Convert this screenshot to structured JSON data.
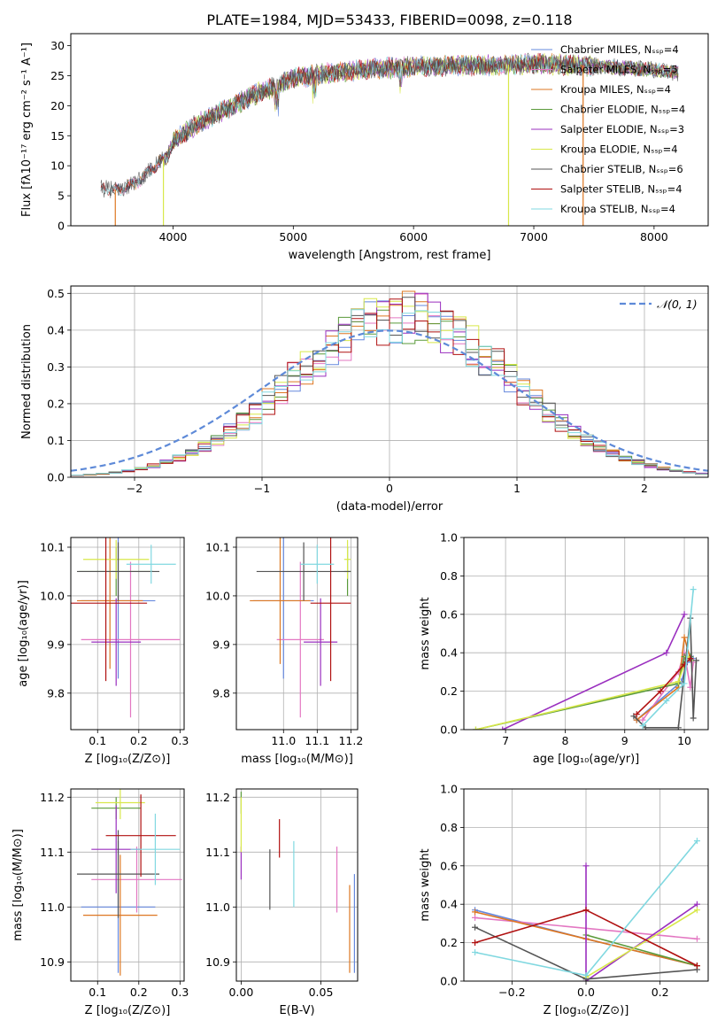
{
  "title": "PLATE=1984, MJD=53433, FIBERID=0098, z=0.118",
  "colors": {
    "Chabrier MILES": "#6688dd",
    "Salpeter MILES": "#e377c2",
    "Kroupa MILES": "#dd7722",
    "Chabrier ELODIE": "#5a9a3a",
    "Salpeter ELODIE": "#9a2fbf",
    "Kroupa ELODIE": "#d8e84a",
    "Chabrier STELIB": "#555555",
    "Salpeter STELIB": "#b01010",
    "Kroupa STELIB": "#80d8e0"
  },
  "chart_data": [
    {
      "type": "line",
      "name": "spectrum",
      "xlabel": "wavelength [Angstrom, rest frame]",
      "ylabel": "Flux [fλ10⁻¹⁷ erg cm⁻² s⁻¹ A⁻¹]",
      "xlim": [
        3150,
        8450
      ],
      "ylim": [
        0,
        32
      ],
      "xticks": [
        4000,
        5000,
        6000,
        7000,
        8000
      ],
      "yticks": [
        0,
        5,
        10,
        15,
        20,
        25,
        30
      ],
      "grid": false,
      "legend_position": "top-right",
      "legend": [
        "Chabrier MILES, Nₛₛₚ=4",
        "Salpeter MILES, Nₛₛₚ=5",
        "Kroupa MILES, Nₛₛₚ=4",
        "Chabrier ELODIE, Nₛₛₚ=4",
        "Salpeter ELODIE, Nₛₛₚ=3",
        "Kroupa ELODIE, Nₛₛₚ=4",
        "Chabrier STELIB, Nₛₛₚ=6",
        "Salpeter STELIB, Nₛₛₚ=4",
        "Kroupa STELIB, Nₛₛₚ=4"
      ],
      "continuum": {
        "x": [
          3400,
          3550,
          3700,
          3850,
          3950,
          4000,
          4200,
          4400,
          4700,
          5000,
          5300,
          5600,
          6000,
          6300,
          6700,
          7000,
          7300,
          7600,
          8000,
          8200
        ],
        "y": [
          6.2,
          6.0,
          7.2,
          10.0,
          11.5,
          14.0,
          17.0,
          19.0,
          22.0,
          24.5,
          25.5,
          26.0,
          26.5,
          26.7,
          26.8,
          27.0,
          26.8,
          26.5,
          26.0,
          25.5
        ]
      },
      "dropouts": [
        {
          "series": "Kroupa MILES",
          "x": 3520
        },
        {
          "series": "Kroupa ELODIE",
          "x": 3920
        },
        {
          "series": "Kroupa ELODIE",
          "x": 6790
        },
        {
          "series": "Kroupa MILES",
          "x": 7410
        }
      ]
    },
    {
      "type": "line",
      "name": "residual-histogram",
      "xlabel": "(data-model)/error",
      "ylabel": "Normed distribution",
      "xlim": [
        -2.5,
        2.5
      ],
      "ylim": [
        0,
        0.52
      ],
      "xticks": [
        -2,
        -1,
        0,
        1,
        2
      ],
      "yticks": [
        0.0,
        0.1,
        0.2,
        0.3,
        0.4,
        0.5
      ],
      "grid": true,
      "legend_position": "top-right",
      "legend": [
        "𝒩(0, 1)"
      ],
      "gaussian": {
        "mean": 0,
        "sigma": 1
      }
    },
    {
      "type": "scatter",
      "name": "age-vs-Z",
      "xlabel": "Z [log₁₀(Z/Z⊙)]",
      "ylabel": "age  [log₁₀(age/yr)]",
      "xlim": [
        0.035,
        0.31
      ],
      "ylim": [
        9.725,
        10.12
      ],
      "xticks": [
        0.1,
        0.2,
        0.3
      ],
      "yticks": [
        9.8,
        9.9,
        10.0,
        10.1
      ],
      "grid": true,
      "points": [
        {
          "series": "Chabrier MILES",
          "x": 0.15,
          "xerr": 0.09,
          "y": 9.99,
          "yerr": 0.16
        },
        {
          "series": "Salpeter MILES",
          "x": 0.18,
          "xerr": 0.12,
          "y": 9.91,
          "yerr": 0.16
        },
        {
          "series": "Kroupa MILES",
          "x": 0.13,
          "xerr": 0.08,
          "y": 9.99,
          "yerr": 0.14
        },
        {
          "series": "Chabrier ELODIE",
          "x": 0.145,
          "xerr": 0.09,
          "y": 10.05,
          "yerr": 0.05
        },
        {
          "series": "Salpeter ELODIE",
          "x": 0.145,
          "xerr": 0.06,
          "y": 9.905,
          "yerr": 0.09
        },
        {
          "series": "Kroupa ELODIE",
          "x": 0.145,
          "xerr": 0.08,
          "y": 10.075,
          "yerr": 0.04
        },
        {
          "series": "Chabrier STELIB",
          "x": 0.15,
          "xerr": 0.1,
          "y": 10.05,
          "yerr": 0.06
        },
        {
          "series": "Salpeter STELIB",
          "x": 0.12,
          "xerr": 0.1,
          "y": 9.985,
          "yerr": 0.16
        },
        {
          "series": "Kroupa STELIB",
          "x": 0.23,
          "xerr": 0.06,
          "y": 10.065,
          "yerr": 0.04
        }
      ]
    },
    {
      "type": "scatter",
      "name": "age-vs-mass",
      "xlabel": "mass [log₁₀(M/M⊙)]",
      "ylabel": "",
      "xlim": [
        10.86,
        11.22
      ],
      "ylim": [
        9.725,
        10.12
      ],
      "xticks": [
        11.0,
        11.1,
        11.2
      ],
      "yticks": [
        9.8,
        9.9,
        10.0,
        10.1
      ],
      "grid": true,
      "points": [
        {
          "series": "Chabrier MILES",
          "x": 11.0,
          "xerr": 0.09,
          "y": 9.99,
          "yerr": 0.16
        },
        {
          "series": "Salpeter MILES",
          "x": 11.05,
          "xerr": 0.07,
          "y": 9.91,
          "yerr": 0.16
        },
        {
          "series": "Kroupa MILES",
          "x": 10.99,
          "xerr": 0.09,
          "y": 9.99,
          "yerr": 0.13
        },
        {
          "series": "Chabrier ELODIE",
          "x": 11.19,
          "xerr": 0.01,
          "y": 10.05,
          "yerr": 0.05
        },
        {
          "series": "Salpeter ELODIE",
          "x": 11.11,
          "xerr": 0.05,
          "y": 9.905,
          "yerr": 0.09
        },
        {
          "series": "Kroupa ELODIE",
          "x": 11.19,
          "xerr": 0.01,
          "y": 10.075,
          "yerr": 0.04
        },
        {
          "series": "Chabrier STELIB",
          "x": 11.06,
          "xerr": 0.14,
          "y": 10.05,
          "yerr": 0.06
        },
        {
          "series": "Salpeter STELIB",
          "x": 11.14,
          "xerr": 0.06,
          "y": 9.985,
          "yerr": 0.16
        },
        {
          "series": "Kroupa STELIB",
          "x": 11.1,
          "xerr": 0.05,
          "y": 10.065,
          "yerr": 0.04
        }
      ]
    },
    {
      "type": "line",
      "name": "mass-weight-vs-age",
      "xlabel": "age  [log₁₀(age/yr)]",
      "ylabel": "mass weight",
      "xlim": [
        6.3,
        10.4
      ],
      "ylim": [
        0,
        1.0
      ],
      "xticks": [
        7,
        8,
        9,
        10
      ],
      "yticks": [
        0.0,
        0.2,
        0.4,
        0.6,
        0.8,
        1.0
      ],
      "grid": true,
      "series": [
        {
          "key": "Chabrier MILES",
          "x": [
            9.2,
            9.95,
            10.05,
            10.15
          ],
          "y": [
            0.05,
            0.25,
            0.35,
            0.37
          ]
        },
        {
          "key": "Salpeter MILES",
          "x": [
            9.3,
            9.9,
            10.0,
            10.1,
            10.15
          ],
          "y": [
            0.05,
            0.3,
            0.4,
            0.22,
            0.35
          ]
        },
        {
          "key": "Kroupa MILES",
          "x": [
            9.2,
            9.9,
            10.0,
            10.1
          ],
          "y": [
            0.05,
            0.22,
            0.48,
            0.37
          ]
        },
        {
          "key": "Chabrier ELODIE",
          "x": [
            6.5,
            9.9,
            10.0,
            10.1
          ],
          "y": [
            0.0,
            0.24,
            0.38,
            0.38
          ]
        },
        {
          "key": "Salpeter ELODIE",
          "x": [
            6.95,
            9.7,
            10.0
          ],
          "y": [
            0.0,
            0.4,
            0.6
          ]
        },
        {
          "key": "Kroupa ELODIE",
          "x": [
            6.5,
            9.9,
            10.05,
            10.12
          ],
          "y": [
            0.0,
            0.25,
            0.38,
            0.36
          ]
        },
        {
          "key": "Chabrier STELIB",
          "x": [
            9.15,
            9.35,
            9.9,
            10.1,
            10.15,
            10.2
          ],
          "y": [
            0.07,
            0.01,
            0.01,
            0.58,
            0.06,
            0.36
          ]
        },
        {
          "key": "Salpeter STELIB",
          "x": [
            9.2,
            9.6,
            10.0,
            10.1
          ],
          "y": [
            0.08,
            0.2,
            0.34,
            0.37
          ]
        },
        {
          "key": "Kroupa STELIB",
          "x": [
            9.3,
            9.7,
            10.0,
            10.15
          ],
          "y": [
            0.02,
            0.15,
            0.24,
            0.73
          ]
        }
      ]
    },
    {
      "type": "scatter",
      "name": "mass-vs-Z",
      "xlabel": "Z [log₁₀(Z/Z⊙)]",
      "ylabel": "mass [log₁₀(M/M⊙)]",
      "xlim": [
        0.035,
        0.31
      ],
      "ylim": [
        10.865,
        11.215
      ],
      "xticks": [
        0.1,
        0.2,
        0.3
      ],
      "yticks": [
        10.9,
        11.0,
        11.1,
        11.2
      ],
      "grid": true,
      "points": [
        {
          "series": "Chabrier MILES",
          "x": 0.15,
          "xerr": 0.09,
          "y": 11.0,
          "yerr": 0.12
        },
        {
          "series": "Salpeter MILES",
          "x": 0.195,
          "xerr": 0.11,
          "y": 11.05,
          "yerr": 0.06
        },
        {
          "series": "Kroupa MILES",
          "x": 0.155,
          "xerr": 0.09,
          "y": 10.985,
          "yerr": 0.11
        },
        {
          "series": "Chabrier ELODIE",
          "x": 0.145,
          "xerr": 0.06,
          "y": 11.18,
          "yerr": 0.02
        },
        {
          "series": "Salpeter ELODIE",
          "x": 0.145,
          "xerr": 0.06,
          "y": 11.105,
          "yerr": 0.08
        },
        {
          "series": "Kroupa ELODIE",
          "x": 0.155,
          "xerr": 0.06,
          "y": 11.19,
          "yerr": 0.03
        },
        {
          "series": "Chabrier STELIB",
          "x": 0.15,
          "xerr": 0.1,
          "y": 11.06,
          "yerr": 0.08
        },
        {
          "series": "Salpeter STELIB",
          "x": 0.205,
          "xerr": 0.085,
          "y": 11.13,
          "yerr": 0.075
        },
        {
          "series": "Kroupa STELIB",
          "x": 0.24,
          "xerr": 0.06,
          "y": 11.105,
          "yerr": 0.065
        }
      ]
    },
    {
      "type": "scatter",
      "name": "mass-vs-EBV",
      "xlabel": "E(B-V)",
      "ylabel": "",
      "xlim": [
        -0.003,
        0.073
      ],
      "ylim": [
        10.865,
        11.215
      ],
      "xticks": [
        0.0,
        0.05
      ],
      "yticks": [
        10.9,
        11.0,
        11.1,
        11.2
      ],
      "grid": true,
      "points": [
        {
          "series": "Chabrier MILES",
          "x": 0.071,
          "xerr": 0,
          "y": 10.97,
          "yerr": 0.09
        },
        {
          "series": "Salpeter MILES",
          "x": 0.06,
          "xerr": 0,
          "y": 11.05,
          "yerr": 0.06
        },
        {
          "series": "Kroupa MILES",
          "x": 0.068,
          "xerr": 0,
          "y": 10.96,
          "yerr": 0.08
        },
        {
          "series": "Chabrier ELODIE",
          "x": 0.0,
          "xerr": 0,
          "y": 11.19,
          "yerr": 0.02
        },
        {
          "series": "Salpeter ELODIE",
          "x": 0.0,
          "xerr": 0,
          "y": 11.08,
          "yerr": 0.03
        },
        {
          "series": "Kroupa ELODIE",
          "x": 0.0,
          "xerr": 0,
          "y": 11.15,
          "yerr": 0.05
        },
        {
          "series": "Chabrier STELIB",
          "x": 0.018,
          "xerr": 0,
          "y": 11.05,
          "yerr": 0.055
        },
        {
          "series": "Salpeter STELIB",
          "x": 0.024,
          "xerr": 0,
          "y": 11.125,
          "yerr": 0.035
        },
        {
          "series": "Kroupa STELIB",
          "x": 0.033,
          "xerr": 0,
          "y": 11.06,
          "yerr": 0.06
        }
      ]
    },
    {
      "type": "line",
      "name": "mass-weight-vs-Z",
      "xlabel": "Z [log₁₀(Z/Z⊙)]",
      "ylabel": "mass weight",
      "xlim": [
        -0.33,
        0.33
      ],
      "ylim": [
        0,
        1.0
      ],
      "xticks": [
        -0.2,
        0.0,
        0.2
      ],
      "yticks": [
        0.0,
        0.2,
        0.4,
        0.6,
        0.8,
        1.0
      ],
      "grid": true,
      "series": [
        {
          "key": "Chabrier MILES",
          "x": [
            -0.3,
            0.0,
            0.3
          ],
          "y": [
            0.37,
            0.22,
            0.08
          ]
        },
        {
          "key": "Salpeter MILES",
          "x": [
            -0.3,
            0.3
          ],
          "y": [
            0.33,
            0.22
          ]
        },
        {
          "key": "Kroupa MILES",
          "x": [
            -0.3,
            0.0,
            0.3
          ],
          "y": [
            0.36,
            0.22,
            0.08
          ]
        },
        {
          "key": "Chabrier ELODIE",
          "x": [
            0.0,
            0.3
          ],
          "y": [
            0.24,
            0.08
          ]
        },
        {
          "key": "Salpeter ELODIE",
          "x": [
            0.0,
            0.0,
            0.3
          ],
          "y": [
            0.6,
            0.0,
            0.4
          ]
        },
        {
          "key": "Kroupa ELODIE",
          "x": [
            0.0,
            0.3
          ],
          "y": [
            0.02,
            0.37
          ]
        },
        {
          "key": "Chabrier STELIB",
          "x": [
            -0.3,
            0.0,
            0.3
          ],
          "y": [
            0.28,
            0.01,
            0.06
          ]
        },
        {
          "key": "Salpeter STELIB",
          "x": [
            -0.3,
            0.0,
            0.3
          ],
          "y": [
            0.2,
            0.37,
            0.08
          ]
        },
        {
          "key": "Kroupa STELIB",
          "x": [
            -0.3,
            0.0,
            0.3
          ],
          "y": [
            0.15,
            0.03,
            0.73
          ]
        }
      ]
    }
  ]
}
